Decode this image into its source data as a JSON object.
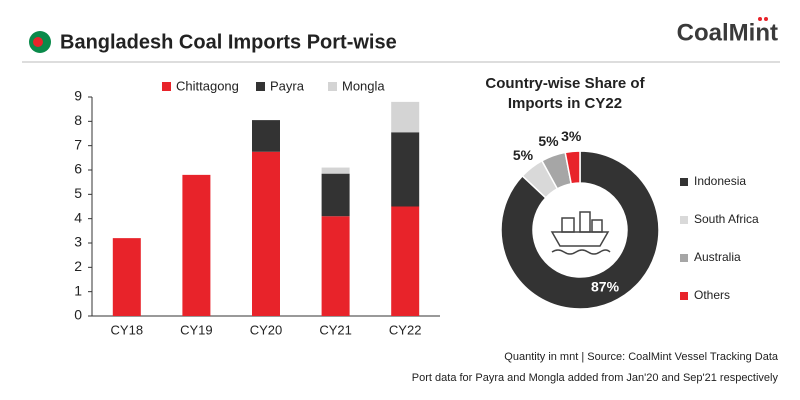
{
  "header": {
    "title": "Bangladesh Coal Imports Port-wise",
    "logo": "CoalMint"
  },
  "footer": {
    "source": "Quantity in mnt | Source: CoalMint Vessel Tracking Data",
    "note": "Port data for Payra and Mongla added from Jan'20 and Sep'21 respectively"
  },
  "chart_data": [
    {
      "type": "stacked_bar",
      "categories": [
        "CY18",
        "CY19",
        "CY20",
        "CY21",
        "CY22"
      ],
      "series": [
        {
          "name": "Chittagong",
          "color": "#e8232a",
          "values": [
            3.2,
            5.8,
            6.75,
            4.1,
            4.5
          ]
        },
        {
          "name": "Payra",
          "color": "#333333",
          "values": [
            null,
            null,
            1.3,
            1.75,
            3.05
          ]
        },
        {
          "name": "Mongla",
          "color": "#d4d4d4",
          "values": [
            null,
            null,
            null,
            0.25,
            1.25
          ]
        }
      ],
      "ylim": [
        0,
        9
      ],
      "yticks": [
        0,
        1,
        2,
        3,
        4,
        5,
        6,
        7,
        8,
        9
      ],
      "grid": false,
      "legend": "top"
    },
    {
      "type": "donut",
      "title": "Country-wise Share of Imports in CY22",
      "categories": [
        "Indonesia",
        "South Africa",
        "Australia",
        "Others"
      ],
      "values": [
        87,
        5,
        5,
        3
      ],
      "value_labels": [
        "87%",
        "5%",
        "5%",
        "3%"
      ],
      "colors": [
        "#333333",
        "#d9d9d9",
        "#a6a6a6",
        "#e8232a"
      ],
      "legend": "right"
    }
  ]
}
